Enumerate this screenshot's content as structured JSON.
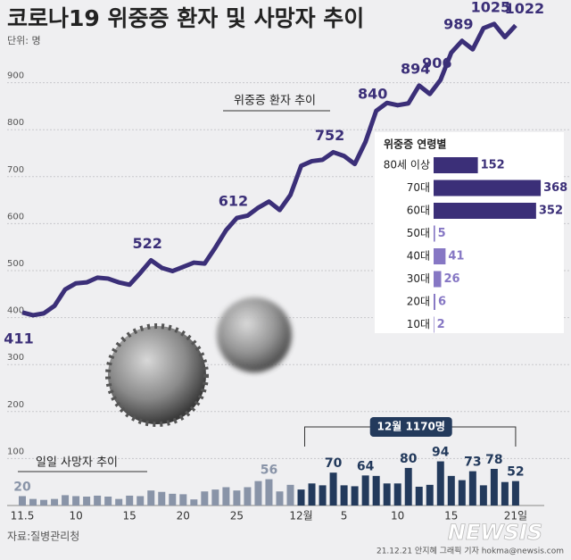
{
  "chart_data": {
    "type": "line",
    "title": "코로나19 위중증 환자 및 사망자 추이",
    "unit": "단위: 명",
    "categories": [
      "11.5",
      null,
      null,
      null,
      null,
      "10",
      null,
      null,
      null,
      null,
      "15",
      null,
      null,
      null,
      null,
      "20",
      null,
      null,
      null,
      null,
      "25",
      null,
      null,
      null,
      null,
      null,
      "12월",
      null,
      null,
      null,
      "5",
      null,
      null,
      null,
      null,
      "10",
      null,
      null,
      null,
      null,
      "15",
      null,
      null,
      null,
      null,
      null,
      "21일"
    ],
    "ylim": [
      0,
      1000
    ],
    "yticks": [
      100,
      200,
      300,
      400,
      500,
      600,
      700,
      800,
      900
    ],
    "grid": true,
    "series": [
      {
        "name": "위중증 환자 추이",
        "type": "line",
        "color": "#3b2f78",
        "values": [
          411,
          405,
          409,
          425,
          460,
          473,
          475,
          485,
          483,
          475,
          470,
          495,
          522,
          506,
          499,
          508,
          517,
          515,
          549,
          586,
          612,
          617,
          634,
          647,
          629,
          661,
          723,
          733,
          736,
          752,
          744,
          727,
          774,
          840,
          857,
          852,
          856,
          894,
          876,
          906,
          964,
          989,
          971,
          1016,
          1025,
          997,
          1022
        ],
        "label_indices": [
          0,
          12,
          20,
          29,
          33,
          37,
          39,
          41,
          44,
          46
        ]
      },
      {
        "name": "일일 사망자 추이",
        "type": "bar",
        "values": [
          20,
          14,
          12,
          14,
          22,
          20,
          19,
          21,
          19,
          14,
          21,
          20,
          32,
          29,
          25,
          24,
          13,
          30,
          34,
          39,
          32,
          39,
          52,
          56,
          30,
          44,
          34,
          47,
          43,
          70,
          43,
          41,
          64,
          63,
          47,
          47,
          80,
          40,
          44,
          94,
          63,
          54,
          73,
          43,
          78,
          50,
          52
        ],
        "colors": [
          "#8994a8",
          "#8994a8",
          "#8994a8",
          "#8994a8",
          "#8994a8",
          "#8994a8",
          "#8994a8",
          "#8994a8",
          "#8994a8",
          "#8994a8",
          "#8994a8",
          "#8994a8",
          "#8994a8",
          "#8994a8",
          "#8994a8",
          "#8994a8",
          "#8994a8",
          "#8994a8",
          "#8994a8",
          "#8994a8",
          "#8994a8",
          "#8994a8",
          "#8994a8",
          "#8994a8",
          "#8994a8",
          "#8994a8",
          "#233a5c",
          "#233a5c",
          "#233a5c",
          "#233a5c",
          "#233a5c",
          "#233a5c",
          "#233a5c",
          "#233a5c",
          "#233a5c",
          "#233a5c",
          "#233a5c",
          "#233a5c",
          "#233a5c",
          "#233a5c",
          "#233a5c",
          "#233a5c",
          "#233a5c",
          "#233a5c",
          "#233a5c",
          "#233a5c",
          "#233a5c"
        ],
        "label_indices": [
          0,
          23,
          29,
          32,
          36,
          39,
          42,
          44,
          46
        ]
      }
    ],
    "annotation": "12월 1170명",
    "inset": {
      "type": "bar",
      "orientation": "horizontal",
      "title": "위중증 연령별",
      "categories": [
        "80세 이상",
        "70대",
        "60대",
        "50대",
        "40대",
        "30대",
        "20대",
        "10대"
      ],
      "values": [
        152,
        368,
        352,
        5,
        41,
        26,
        6,
        2
      ],
      "colors": [
        "#3b2f78",
        "#3b2f78",
        "#3b2f78",
        "#8677c4",
        "#8677c4",
        "#8677c4",
        "#8677c4",
        "#8677c4"
      ],
      "xlim": [
        0,
        380
      ]
    },
    "source": "자료:질병관리청",
    "credit": "21.12.21 안지혜 그래픽 기자 hokma@newsis.com",
    "watermark": "NEWSIS"
  }
}
